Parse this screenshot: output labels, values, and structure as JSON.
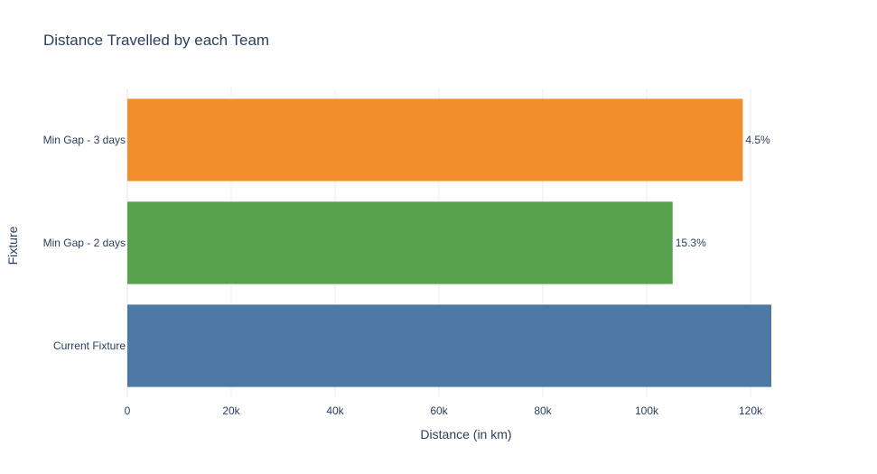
{
  "chart_data": {
    "type": "bar",
    "orientation": "horizontal",
    "title": "Distance Travelled by each Team",
    "xlabel": "Distance (in km)",
    "ylabel": "Fixture",
    "xlim": [
      0,
      125000
    ],
    "x_ticks": [
      0,
      20000,
      40000,
      60000,
      80000,
      100000,
      120000
    ],
    "x_tick_labels": [
      "0",
      "20k",
      "40k",
      "60k",
      "80k",
      "100k",
      "120k"
    ],
    "grid": true,
    "categories": [
      "Current Fixture",
      "Min Gap - 2 days",
      "Min Gap - 3 days"
    ],
    "values": [
      124000,
      105000,
      118500
    ],
    "labels": [
      "",
      "15.3%",
      "4.5%"
    ],
    "colors": [
      "#4e79a7",
      "#59a14f",
      "#f28e2b"
    ]
  }
}
